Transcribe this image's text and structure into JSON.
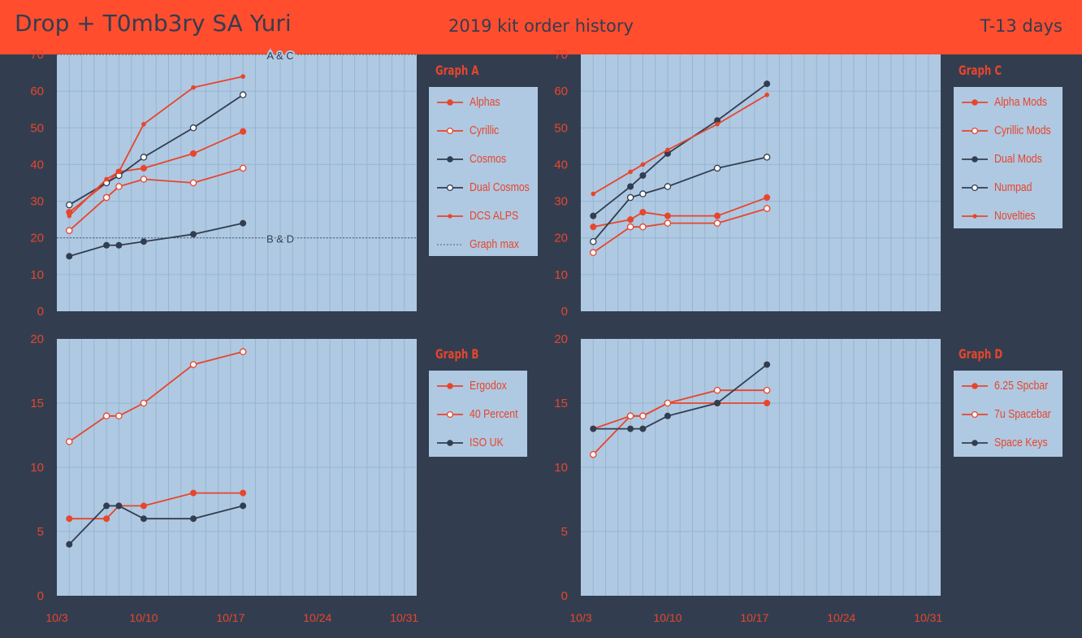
{
  "header": {
    "title": "Drop + T0mb3ry SA Yuri",
    "subtitle": "2019 kit order history",
    "countdown": "T-13  days"
  },
  "colors": {
    "header": "#ff4d2e",
    "background": "#323e50",
    "plot": "#afc9e2",
    "red": "#e8452c",
    "navy": "#323e50",
    "grid": "#96b4d2"
  },
  "chart_data": [
    {
      "type": "line",
      "title": "Graph A",
      "x_ticks": [
        "10/3",
        "10/10",
        "10/17",
        "10/24",
        "10/31"
      ],
      "ylim": [
        0,
        70
      ],
      "y_ticks": [
        0,
        10,
        20,
        30,
        40,
        50,
        60,
        70
      ],
      "grid": true,
      "legend": "right",
      "series": [
        {
          "name": "Alphas",
          "color": "#e8452c",
          "marker": "filled",
          "x": [
            "10/4",
            "10/7",
            "10/8",
            "10/10",
            "10/14",
            "10/18"
          ],
          "values": [
            27,
            35,
            38,
            39,
            43,
            49
          ]
        },
        {
          "name": "Cyrillic",
          "color": "#e8452c",
          "marker": "hollow",
          "x": [
            "10/4",
            "10/7",
            "10/8",
            "10/10",
            "10/14",
            "10/18"
          ],
          "values": [
            22,
            31,
            34,
            36,
            35,
            39
          ]
        },
        {
          "name": "Cosmos",
          "color": "#323e50",
          "marker": "filled",
          "x": [
            "10/4",
            "10/7",
            "10/8",
            "10/10",
            "10/14",
            "10/18"
          ],
          "values": [
            15,
            18,
            18,
            19,
            21,
            24
          ]
        },
        {
          "name": "Dual Cosmos",
          "color": "#323e50",
          "marker": "hollow",
          "x": [
            "10/4",
            "10/7",
            "10/8",
            "10/10",
            "10/14",
            "10/18"
          ],
          "values": [
            29,
            35,
            37,
            42,
            50,
            59
          ]
        },
        {
          "name": "DCS ALPS",
          "color": "#e8452c",
          "marker": "small",
          "x": [
            "10/4",
            "10/7",
            "10/8",
            "10/10",
            "10/14",
            "10/18"
          ],
          "values": [
            26,
            36,
            38,
            51,
            61,
            64
          ]
        }
      ],
      "reference_lines": [
        {
          "name": "Graph max",
          "label": "A & C",
          "value": 70
        },
        {
          "label": "B & D",
          "value": 20
        }
      ]
    },
    {
      "type": "line",
      "title": "Graph B",
      "x_ticks": [
        "10/3",
        "10/10",
        "10/17",
        "10/24",
        "10/31"
      ],
      "ylim": [
        0,
        20
      ],
      "y_ticks": [
        0,
        5,
        10,
        15,
        20
      ],
      "grid": true,
      "legend": "right",
      "series": [
        {
          "name": "Ergodox",
          "color": "#e8452c",
          "marker": "filled",
          "x": [
            "10/4",
            "10/7",
            "10/8",
            "10/10",
            "10/14",
            "10/18"
          ],
          "values": [
            6,
            6,
            7,
            7,
            8,
            8
          ]
        },
        {
          "name": "40 Percent",
          "color": "#e8452c",
          "marker": "hollow",
          "x": [
            "10/4",
            "10/7",
            "10/8",
            "10/10",
            "10/14",
            "10/18"
          ],
          "values": [
            12,
            14,
            14,
            15,
            18,
            19
          ]
        },
        {
          "name": "ISO UK",
          "color": "#323e50",
          "marker": "filled",
          "x": [
            "10/4",
            "10/7",
            "10/8",
            "10/10",
            "10/14",
            "10/18"
          ],
          "values": [
            4,
            7,
            7,
            6,
            6,
            7
          ]
        }
      ]
    },
    {
      "type": "line",
      "title": "Graph C",
      "x_ticks": [
        "10/3",
        "10/10",
        "10/17",
        "10/24",
        "10/31"
      ],
      "ylim": [
        0,
        70
      ],
      "y_ticks": [
        0,
        10,
        20,
        30,
        40,
        50,
        60,
        70
      ],
      "grid": true,
      "legend": "right",
      "series": [
        {
          "name": "Alpha Mods",
          "color": "#e8452c",
          "marker": "filled",
          "x": [
            "10/4",
            "10/7",
            "10/8",
            "10/10",
            "10/14",
            "10/18"
          ],
          "values": [
            23,
            25,
            27,
            26,
            26,
            31
          ]
        },
        {
          "name": "Cyrillic Mods",
          "color": "#e8452c",
          "marker": "hollow",
          "x": [
            "10/4",
            "10/7",
            "10/8",
            "10/10",
            "10/14",
            "10/18"
          ],
          "values": [
            16,
            23,
            23,
            24,
            24,
            28
          ]
        },
        {
          "name": "Dual Mods",
          "color": "#323e50",
          "marker": "filled",
          "x": [
            "10/4",
            "10/7",
            "10/8",
            "10/10",
            "10/14",
            "10/18"
          ],
          "values": [
            26,
            34,
            37,
            43,
            52,
            62
          ]
        },
        {
          "name": "Numpad",
          "color": "#323e50",
          "marker": "hollow",
          "x": [
            "10/4",
            "10/7",
            "10/8",
            "10/10",
            "10/14",
            "10/18"
          ],
          "values": [
            19,
            31,
            32,
            34,
            39,
            42
          ]
        },
        {
          "name": "Novelties",
          "color": "#e8452c",
          "marker": "small",
          "x": [
            "10/4",
            "10/7",
            "10/8",
            "10/10",
            "10/14",
            "10/18"
          ],
          "values": [
            32,
            38,
            40,
            44,
            51,
            59
          ]
        }
      ]
    },
    {
      "type": "line",
      "title": "Graph D",
      "x_ticks": [
        "10/3",
        "10/10",
        "10/17",
        "10/24",
        "10/31"
      ],
      "ylim": [
        0,
        20
      ],
      "y_ticks": [
        0,
        5,
        10,
        15,
        20
      ],
      "grid": true,
      "legend": "right",
      "series": [
        {
          "name": "6.25 Spcbar",
          "color": "#e8452c",
          "marker": "filled",
          "x": [
            "10/4",
            "10/7",
            "10/8",
            "10/10",
            "10/14",
            "10/18"
          ],
          "values": [
            13,
            14,
            14,
            15,
            15,
            15
          ]
        },
        {
          "name": "7u Spacebar",
          "color": "#e8452c",
          "marker": "hollow",
          "x": [
            "10/4",
            "10/7",
            "10/8",
            "10/10",
            "10/14",
            "10/18"
          ],
          "values": [
            11,
            14,
            14,
            15,
            16,
            16
          ]
        },
        {
          "name": "Space Keys",
          "color": "#323e50",
          "marker": "filled",
          "x": [
            "10/4",
            "10/7",
            "10/8",
            "10/10",
            "10/14",
            "10/18"
          ],
          "values": [
            13,
            13,
            13,
            14,
            15,
            18
          ]
        }
      ]
    }
  ]
}
